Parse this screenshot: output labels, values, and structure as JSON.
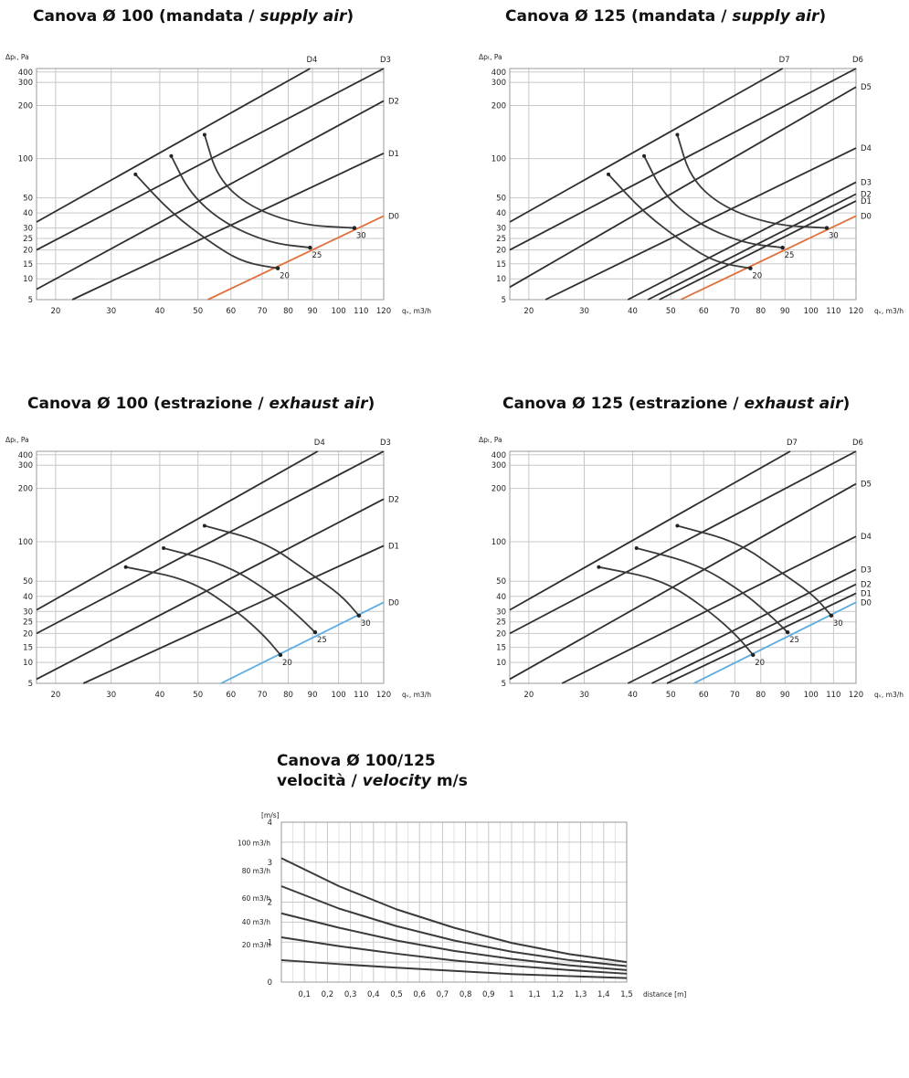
{
  "titles": [
    {
      "main": "Canova Ø 100 (mandata / ",
      "italic": "supply air",
      "close": ")"
    },
    {
      "main": "Canova Ø 125 (mandata / ",
      "italic": "supply air",
      "close": ")"
    },
    {
      "main": "Canova Ø 100 (estrazione / ",
      "italic": "exhaust air",
      "close": ")"
    },
    {
      "main": "Canova Ø 125 (estrazione / ",
      "italic": "exhaust air",
      "close": ")"
    },
    {
      "main": "Canova Ø 100/125",
      "line2": "velocità / ",
      "italic": "velocity",
      "close": " m/s"
    }
  ],
  "colors": {
    "supply_d0": "#e0703c",
    "exhaust_d0": "#5aaee0",
    "curve": "#3a3a3a",
    "grid": "#c8c8c8"
  },
  "chart_data": [
    {
      "type": "line",
      "ylabel": "Δpₜ, Pa",
      "xlabel": "qᵥ, m3/h",
      "x_ticks": [
        "20",
        "30",
        "40",
        "50",
        "60",
        "70",
        "80",
        "90",
        "100",
        "110",
        "120"
      ],
      "y_ticks": [
        "5",
        "10",
        "15",
        "20",
        "25",
        "30",
        "40",
        "50",
        "100",
        "200",
        "300",
        "400"
      ],
      "xlim": [
        15,
        120
      ],
      "ylim": [
        5,
        500
      ],
      "series": [
        {
          "name": "D4",
          "points": [
            [
              15,
              34
            ],
            [
              89,
              500
            ]
          ]
        },
        {
          "name": "D3",
          "points": [
            [
              15,
              20
            ],
            [
              120,
              500
            ]
          ]
        },
        {
          "name": "D2",
          "points": [
            [
              15,
              7.5
            ],
            [
              120,
              220
            ]
          ]
        },
        {
          "name": "D1",
          "points": [
            [
              23,
              5
            ],
            [
              120,
              110
            ]
          ]
        },
        {
          "name": "D0",
          "points": [
            [
              53,
              5
            ],
            [
              120,
              38
            ]
          ]
        }
      ],
      "accent_series": "D0",
      "curves": [
        {
          "name": "20",
          "points": [
            [
              35,
              80
            ],
            [
              43,
              40
            ],
            [
              55,
              22
            ],
            [
              64,
              15.5
            ],
            [
              76,
              13.5
            ]
          ]
        },
        {
          "name": "25",
          "points": [
            [
              43,
              105
            ],
            [
              48,
              55
            ],
            [
              58,
              33
            ],
            [
              73,
              23
            ],
            [
              89,
              21
            ]
          ]
        },
        {
          "name": "30",
          "points": [
            [
              52,
              145
            ],
            [
              56,
              75
            ],
            [
              66,
              44
            ],
            [
              85,
              32
            ],
            [
              107,
              30
            ]
          ]
        }
      ]
    },
    {
      "type": "line",
      "ylabel": "Δpₜ, Pa",
      "xlabel": "qᵥ, m3/h",
      "x_ticks": [
        "20",
        "30",
        "40",
        "50",
        "60",
        "70",
        "80",
        "90",
        "100",
        "110",
        "120"
      ],
      "y_ticks": [
        "5",
        "10",
        "15",
        "20",
        "25",
        "30",
        "40",
        "50",
        "100",
        "200",
        "300",
        "400"
      ],
      "xlim": [
        15,
        120
      ],
      "ylim": [
        5,
        500
      ],
      "series": [
        {
          "name": "D7",
          "points": [
            [
              15,
              34
            ],
            [
              89,
              500
            ]
          ]
        },
        {
          "name": "D6",
          "points": [
            [
              15,
              20
            ],
            [
              120,
              500
            ]
          ]
        },
        {
          "name": "D5",
          "points": [
            [
              15,
              8
            ],
            [
              120,
              280
            ]
          ]
        },
        {
          "name": "D4",
          "points": [
            [
              23,
              5
            ],
            [
              120,
              120
            ]
          ]
        },
        {
          "name": "D3",
          "points": [
            [
              39,
              5
            ],
            [
              120,
              70
            ]
          ]
        },
        {
          "name": "D2",
          "points": [
            [
              44,
              5
            ],
            [
              120,
              55
            ]
          ]
        },
        {
          "name": "D1",
          "points": [
            [
              47,
              5
            ],
            [
              120,
              48
            ]
          ]
        },
        {
          "name": "D0",
          "points": [
            [
              53,
              5
            ],
            [
              120,
              38
            ]
          ]
        }
      ],
      "accent_series": "D0",
      "curves": [
        {
          "name": "20",
          "points": [
            [
              35,
              80
            ],
            [
              43,
              40
            ],
            [
              55,
              22
            ],
            [
              64,
              15.5
            ],
            [
              76,
              13.5
            ]
          ]
        },
        {
          "name": "25",
          "points": [
            [
              43,
              105
            ],
            [
              48,
              55
            ],
            [
              58,
              33
            ],
            [
              73,
              23
            ],
            [
              89,
              21
            ]
          ]
        },
        {
          "name": "30",
          "points": [
            [
              52,
              145
            ],
            [
              56,
              75
            ],
            [
              66,
              44
            ],
            [
              85,
              32
            ],
            [
              107,
              30
            ]
          ]
        }
      ]
    },
    {
      "type": "line",
      "ylabel": "Δpₜ, Pa",
      "xlabel": "qᵥ, m3/h",
      "x_ticks": [
        "20",
        "30",
        "40",
        "50",
        "60",
        "70",
        "80",
        "90",
        "100",
        "110",
        "120"
      ],
      "y_ticks": [
        "5",
        "10",
        "15",
        "20",
        "25",
        "30",
        "40",
        "50",
        "100",
        "200",
        "300",
        "400"
      ],
      "xlim": [
        15,
        120
      ],
      "ylim": [
        5,
        500
      ],
      "series": [
        {
          "name": "D4",
          "points": [
            [
              15,
              31
            ],
            [
              92,
              500
            ]
          ]
        },
        {
          "name": "D3",
          "points": [
            [
              15,
              20
            ],
            [
              120,
              500
            ]
          ]
        },
        {
          "name": "D2",
          "points": [
            [
              15,
              6
            ],
            [
              120,
              180
            ]
          ]
        },
        {
          "name": "D1",
          "points": [
            [
              25,
              5
            ],
            [
              120,
              95
            ]
          ]
        },
        {
          "name": "D0",
          "points": [
            [
              57,
              5
            ],
            [
              120,
              36
            ]
          ]
        }
      ],
      "accent_series": "D0",
      "curves": [
        {
          "name": "20",
          "points": [
            [
              33,
              68
            ],
            [
              48,
              52
            ],
            [
              62,
              30
            ],
            [
              71,
              19
            ],
            [
              77,
              12.5
            ]
          ]
        },
        {
          "name": "25",
          "points": [
            [
              41,
              92
            ],
            [
              58,
              72
            ],
            [
              73,
              43
            ],
            [
              84,
              28
            ],
            [
              91,
              20.5
            ]
          ]
        },
        {
          "name": "30",
          "points": [
            [
              52,
              130
            ],
            [
              71,
              100
            ],
            [
              89,
              60
            ],
            [
              101,
              41
            ],
            [
              109,
              28
            ]
          ]
        }
      ]
    },
    {
      "type": "line",
      "ylabel": "Δpₜ, Pa",
      "xlabel": "qᵥ, m3/h",
      "x_ticks": [
        "20",
        "30",
        "40",
        "50",
        "60",
        "70",
        "80",
        "90",
        "100",
        "110",
        "120"
      ],
      "y_ticks": [
        "5",
        "10",
        "15",
        "20",
        "25",
        "30",
        "40",
        "50",
        "100",
        "200",
        "300",
        "400"
      ],
      "xlim": [
        15,
        120
      ],
      "ylim": [
        5,
        500
      ],
      "series": [
        {
          "name": "D7",
          "points": [
            [
              15,
              31
            ],
            [
              92,
              500
            ]
          ]
        },
        {
          "name": "D6",
          "points": [
            [
              15,
              20
            ],
            [
              120,
              500
            ]
          ]
        },
        {
          "name": "D5",
          "points": [
            [
              15,
              6
            ],
            [
              120,
              220
            ]
          ]
        },
        {
          "name": "D4",
          "points": [
            [
              26,
              5
            ],
            [
              120,
              110
            ]
          ]
        },
        {
          "name": "D3",
          "points": [
            [
              39,
              5
            ],
            [
              120,
              65
            ]
          ]
        },
        {
          "name": "D2",
          "points": [
            [
              45,
              5
            ],
            [
              120,
              48
            ]
          ]
        },
        {
          "name": "D1",
          "points": [
            [
              49,
              5
            ],
            [
              120,
              42
            ]
          ]
        },
        {
          "name": "D0",
          "points": [
            [
              57,
              5
            ],
            [
              120,
              36
            ]
          ]
        }
      ],
      "accent_series": "D0",
      "curves": [
        {
          "name": "20",
          "points": [
            [
              33,
              68
            ],
            [
              48,
              52
            ],
            [
              62,
              30
            ],
            [
              71,
              19
            ],
            [
              77,
              12.5
            ]
          ]
        },
        {
          "name": "25",
          "points": [
            [
              41,
              92
            ],
            [
              58,
              72
            ],
            [
              73,
              43
            ],
            [
              84,
              28
            ],
            [
              91,
              20.5
            ]
          ]
        },
        {
          "name": "30",
          "points": [
            [
              52,
              130
            ],
            [
              71,
              100
            ],
            [
              89,
              60
            ],
            [
              101,
              41
            ],
            [
              109,
              28
            ]
          ]
        }
      ]
    },
    {
      "type": "line",
      "ylabel": "[m/s]",
      "xlabel": "distance [m]",
      "x_ticks": [
        "0,1",
        "0,2",
        "0,3",
        "0,4",
        "0,5",
        "0,6",
        "0,7",
        "0,8",
        "0,9",
        "1",
        "1,1",
        "1,2",
        "1,3",
        "1,4",
        "1,5"
      ],
      "y_ticks": [
        "0",
        "1",
        "2",
        "3",
        "4"
      ],
      "xlim": [
        0,
        1.5
      ],
      "ylim": [
        0,
        4
      ],
      "series": [
        {
          "name": "100 m3/h",
          "x": [
            0,
            0.25,
            0.5,
            0.75,
            1.0,
            1.25,
            1.5
          ],
          "y": [
            3.1,
            2.4,
            1.82,
            1.36,
            0.98,
            0.7,
            0.5
          ]
        },
        {
          "name": "80 m3/h",
          "x": [
            0,
            0.25,
            0.5,
            0.75,
            1.0,
            1.25,
            1.5
          ],
          "y": [
            2.4,
            1.84,
            1.4,
            1.04,
            0.76,
            0.55,
            0.4
          ]
        },
        {
          "name": "60 m3/h",
          "x": [
            0,
            0.25,
            0.5,
            0.75,
            1.0,
            1.25,
            1.5
          ],
          "y": [
            1.72,
            1.36,
            1.04,
            0.78,
            0.58,
            0.42,
            0.3
          ]
        },
        {
          "name": "40 m3/h",
          "x": [
            0,
            0.25,
            0.5,
            0.75,
            1.0,
            1.25,
            1.5
          ],
          "y": [
            1.12,
            0.9,
            0.71,
            0.54,
            0.41,
            0.3,
            0.21
          ]
        },
        {
          "name": "20 m3/h",
          "x": [
            0,
            0.25,
            0.5,
            0.75,
            1.0,
            1.25,
            1.5
          ],
          "y": [
            0.55,
            0.45,
            0.36,
            0.28,
            0.2,
            0.15,
            0.1
          ]
        }
      ]
    }
  ]
}
